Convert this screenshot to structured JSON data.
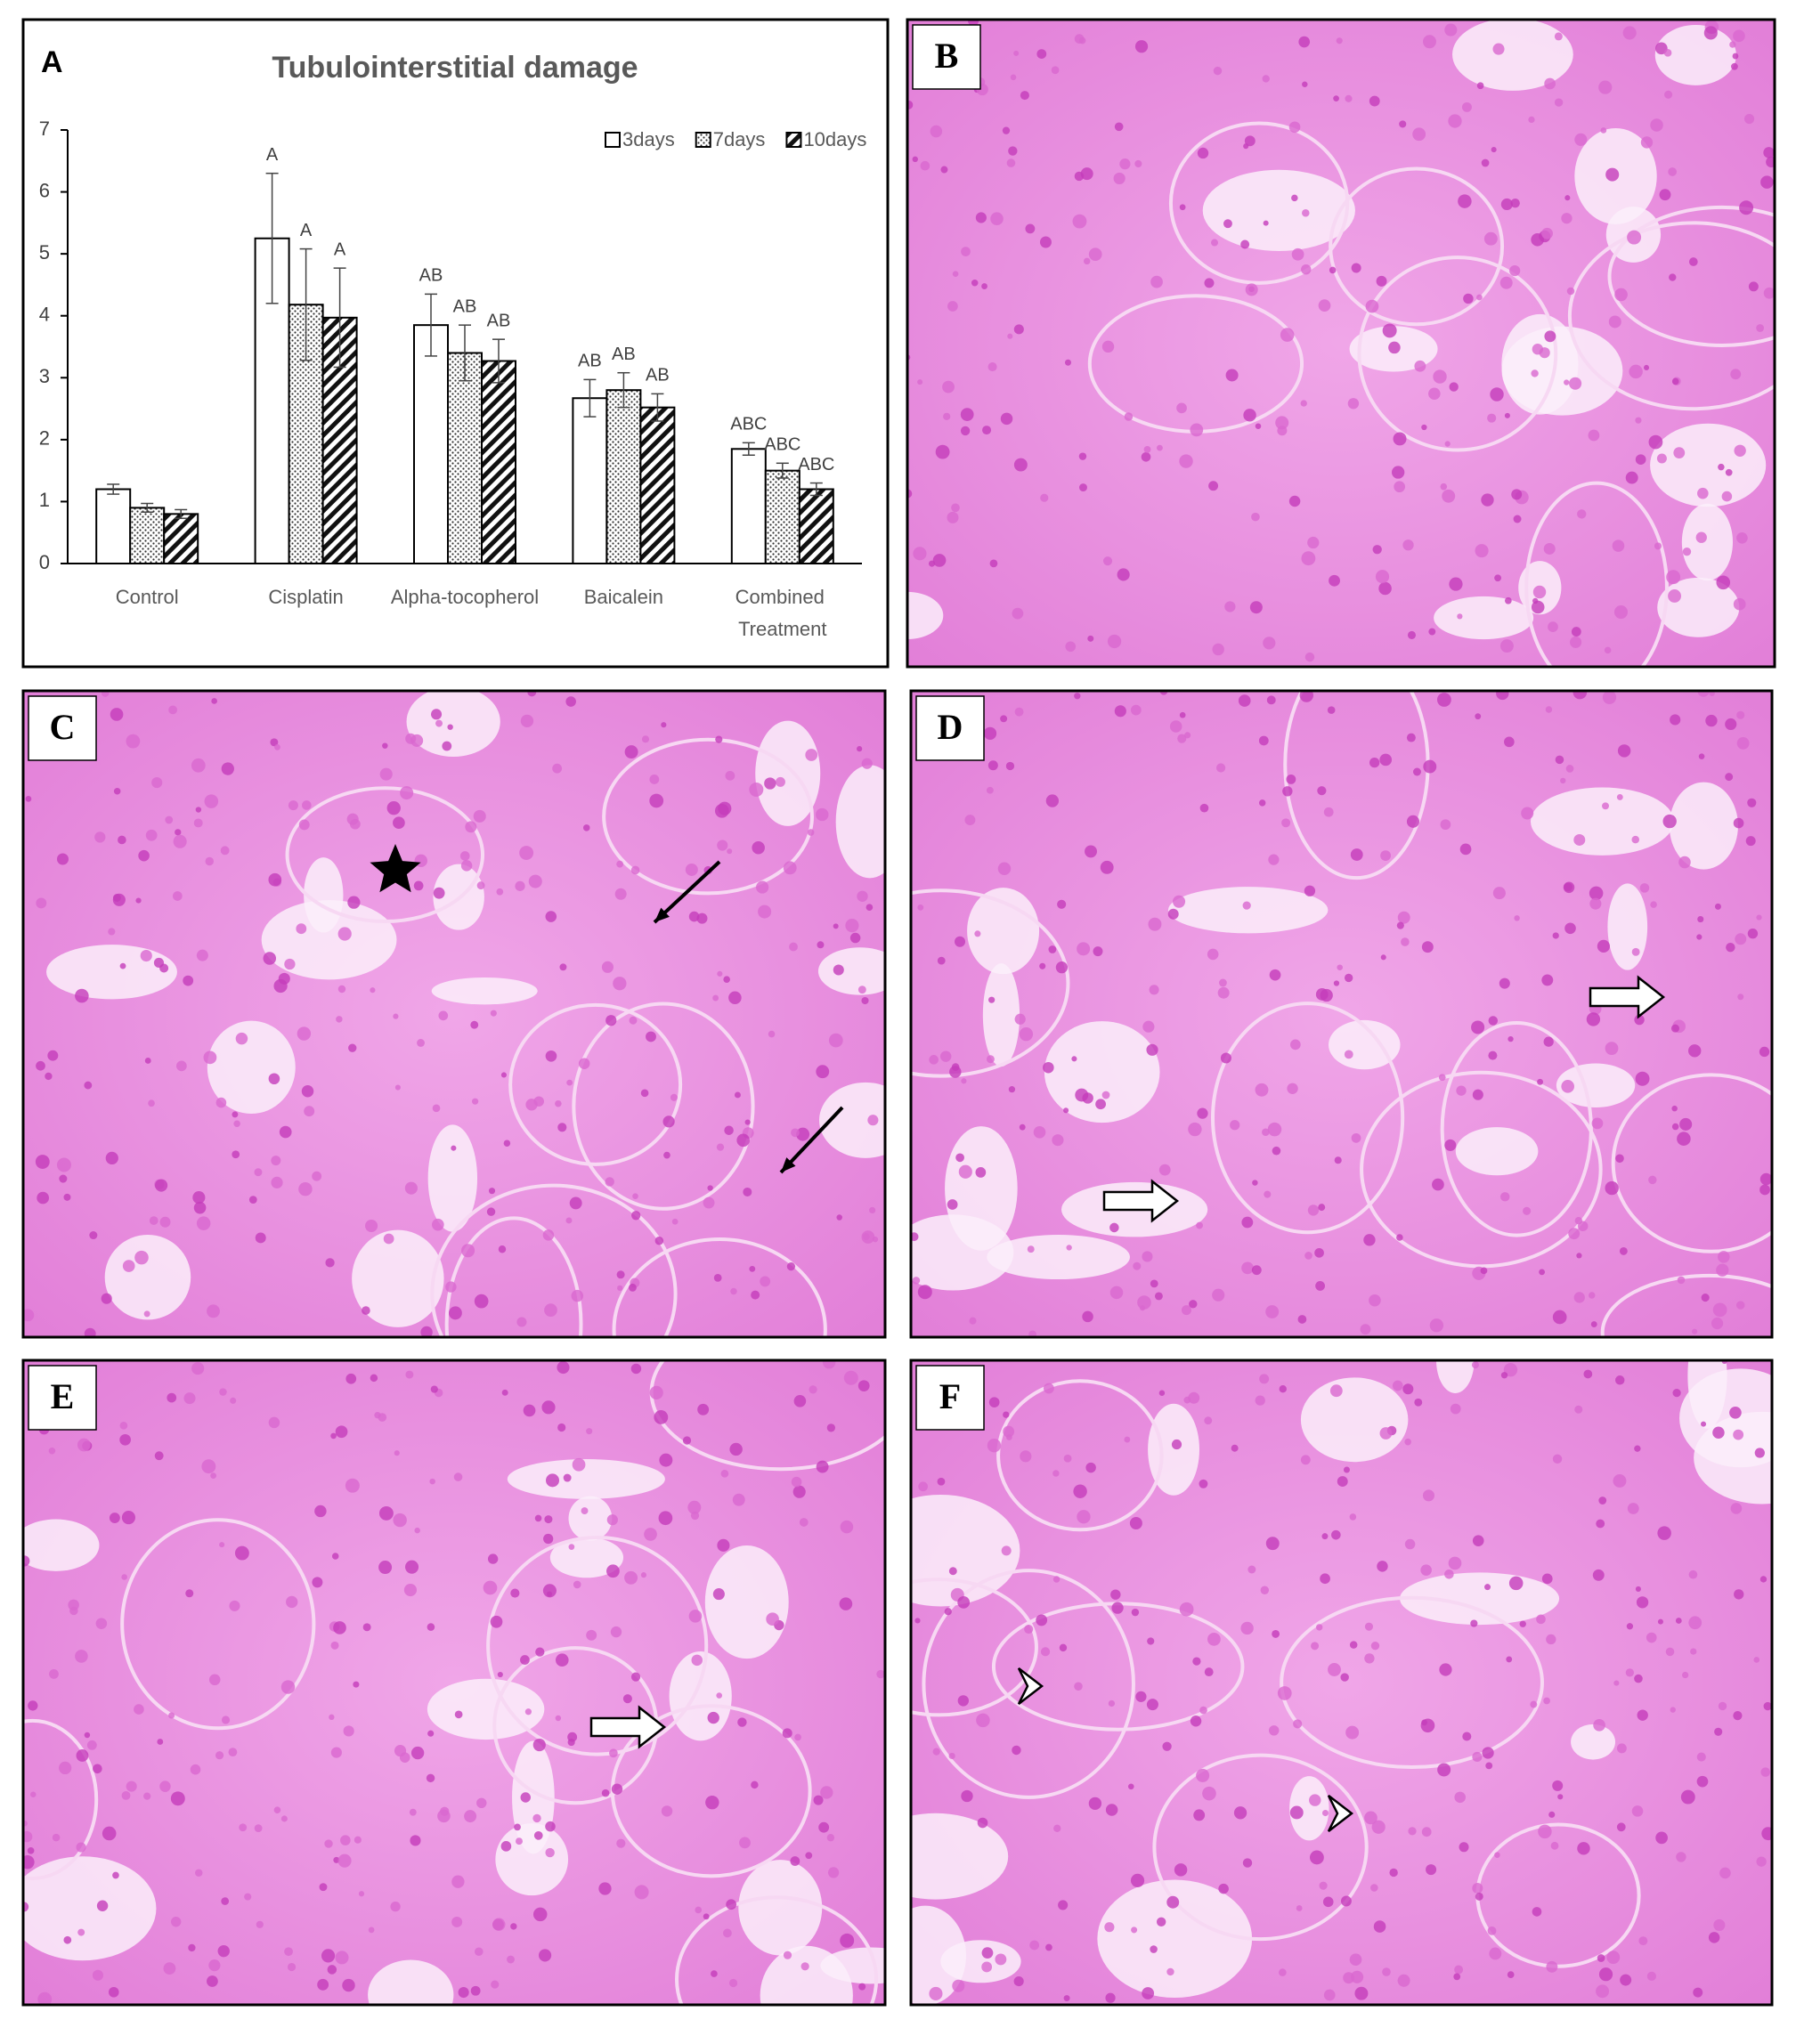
{
  "chart_data": {
    "type": "bar",
    "panel_label": "A",
    "title": "Tubulointerstitial damage",
    "categories": [
      "Control",
      "Cisplatin",
      "Alpha-tocopherol",
      "Baicalein",
      "Combined Treatment"
    ],
    "series": [
      {
        "name": "3days",
        "color": "#ffffff",
        "pattern": "none",
        "values": [
          1.2,
          5.25,
          3.85,
          2.67,
          1.85
        ],
        "errors": [
          0.08,
          1.05,
          0.5,
          0.3,
          0.1
        ],
        "labels": [
          null,
          "A",
          "AB",
          "AB",
          "ABC"
        ]
      },
      {
        "name": "7days",
        "color": "#ffffff",
        "pattern": "dots",
        "values": [
          0.9,
          4.18,
          3.4,
          2.8,
          1.5
        ],
        "errors": [
          0.07,
          0.9,
          0.45,
          0.28,
          0.12
        ],
        "labels": [
          null,
          "A",
          "AB",
          "AB",
          "ABC"
        ]
      },
      {
        "name": "10days",
        "color": "#ffffff",
        "pattern": "hatch",
        "values": [
          0.8,
          3.97,
          3.27,
          2.52,
          1.2
        ],
        "errors": [
          0.07,
          0.8,
          0.35,
          0.22,
          0.1
        ],
        "labels": [
          null,
          "A",
          "AB",
          "AB",
          "ABC"
        ]
      }
    ],
    "ylim": [
      0,
      7
    ],
    "yticks": [
      0,
      1,
      2,
      3,
      4,
      5,
      6,
      7
    ],
    "grid": false,
    "legend": "top-right"
  },
  "panels": [
    {
      "label": "B"
    },
    {
      "label": "C"
    },
    {
      "label": "D"
    },
    {
      "label": "E"
    },
    {
      "label": "F"
    }
  ]
}
